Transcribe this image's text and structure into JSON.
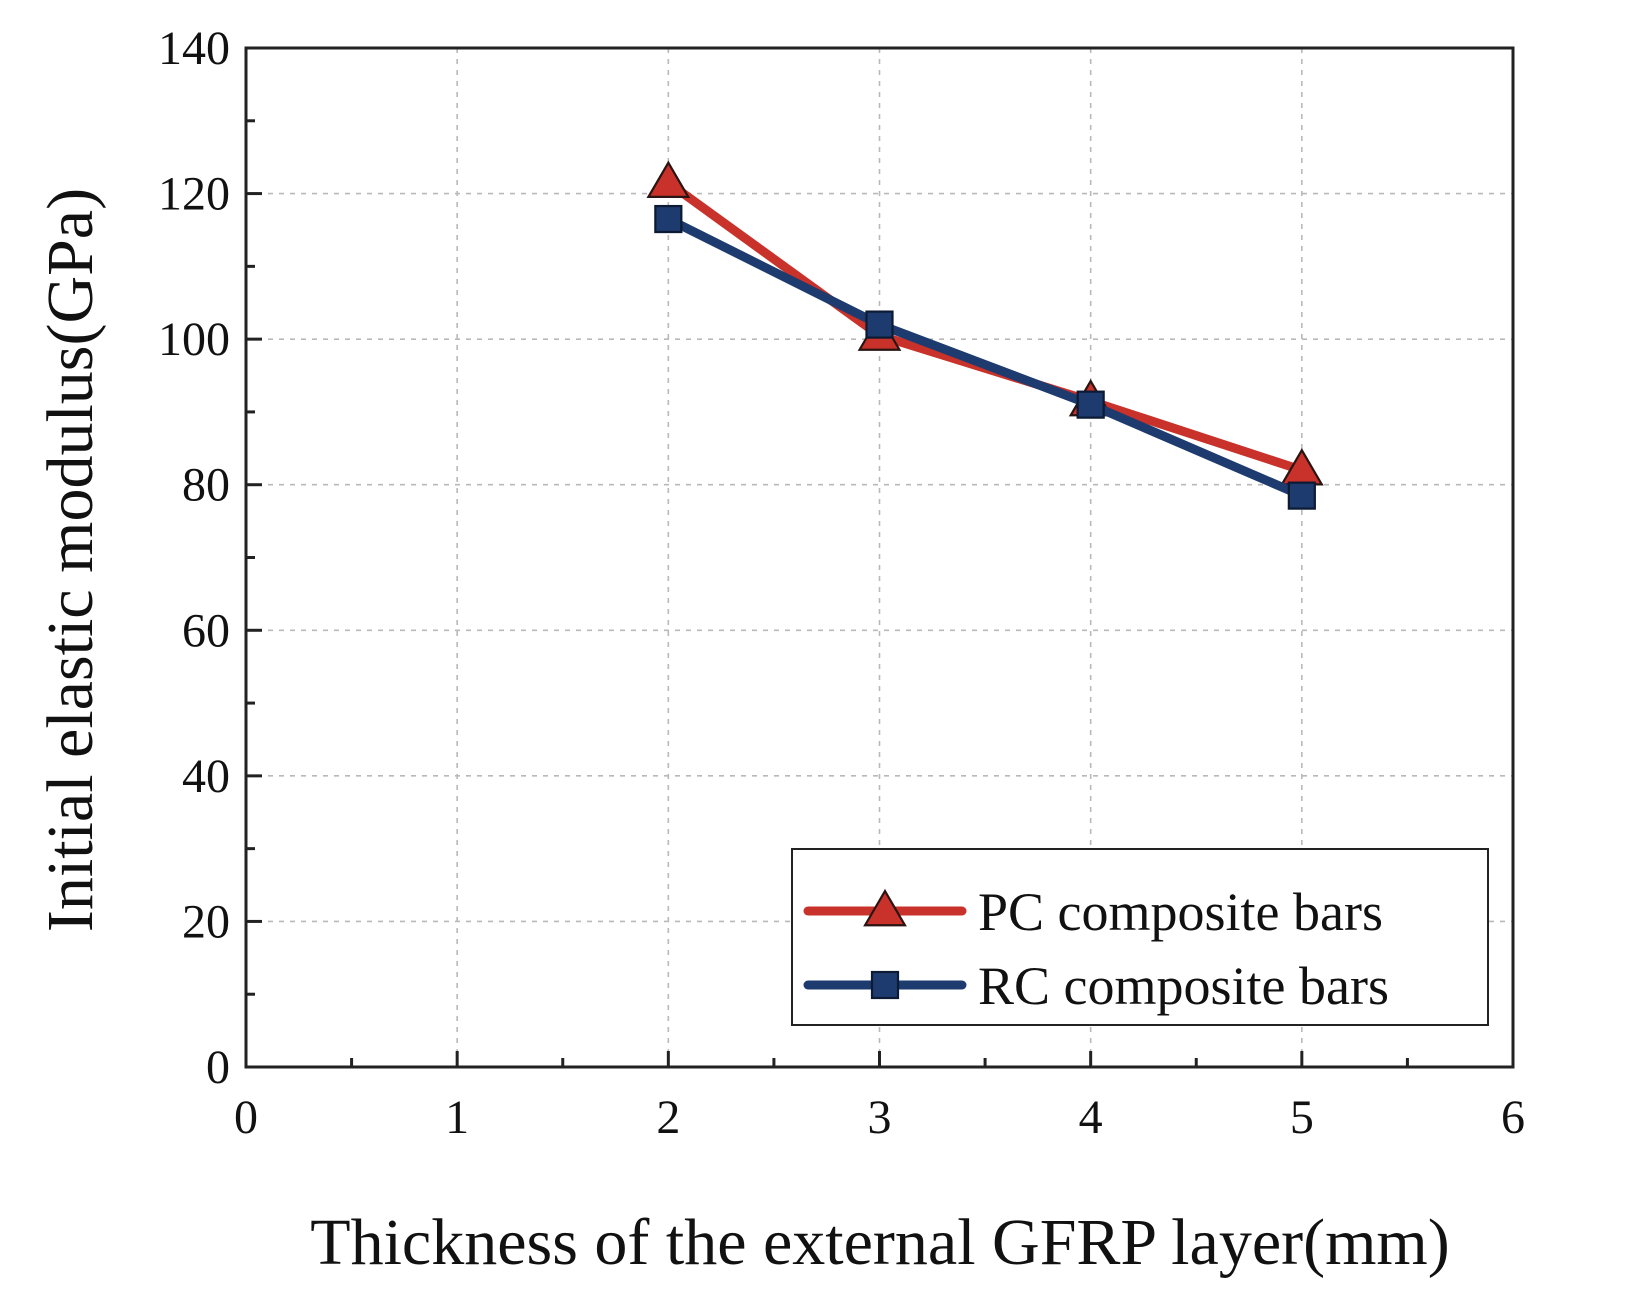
{
  "chart_data": {
    "type": "line",
    "title": "",
    "xlabel": "Thickness of the external GFRP layer(mm)",
    "ylabel": "Initial elastic modulus(GPa)",
    "xlim": [
      0,
      6
    ],
    "ylim": [
      0,
      140
    ],
    "xticks": [
      "0",
      "1",
      "2",
      "3",
      "4",
      "5",
      "6"
    ],
    "yticks": [
      "0",
      "20",
      "40",
      "60",
      "80",
      "100",
      "120",
      "140"
    ],
    "grid": true,
    "legend_position": "bottom-right",
    "x": [
      2,
      3,
      4,
      5
    ],
    "series": [
      {
        "name": "PC composite bars",
        "marker": "triangle",
        "color": "#c8322a",
        "values": [
          121.5,
          100.5,
          91.5,
          82.0
        ]
      },
      {
        "name": "RC composite bars",
        "marker": "square",
        "color": "#1d3b6e",
        "values": [
          116.5,
          102.0,
          91.0,
          78.5
        ]
      }
    ]
  }
}
